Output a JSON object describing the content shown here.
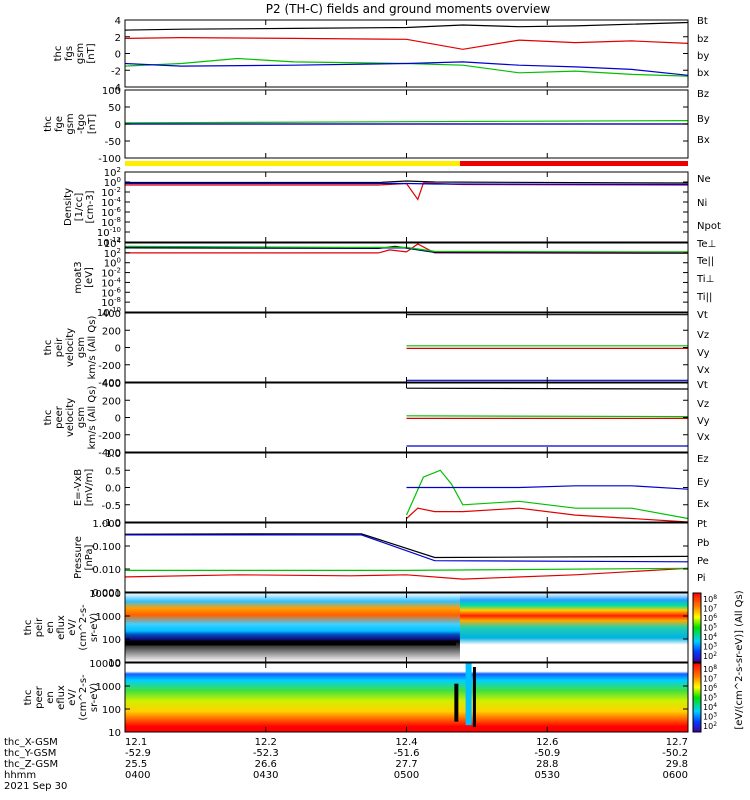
{
  "title": "P2 (TH-C) fields and ground moments overview",
  "colors": {
    "black": "#000000",
    "red": "#e00000",
    "green": "#00c000",
    "blue": "#0000d0"
  },
  "footer": {
    "row_labels": [
      "thc_X-GSM",
      "thc_Y-GSM",
      "thc_Z-GSM",
      "hhmm",
      "2021 Sep 30"
    ],
    "columns": [
      {
        "time": "0400",
        "x_re": "12.1",
        "x": "-52.9",
        "y": "25.5"
      },
      {
        "time": "0430",
        "x_re": "12.2",
        "x": "-52.3",
        "y": "26.6"
      },
      {
        "time": "0500",
        "x_re": "12.4",
        "x": "-51.6",
        "y": "27.7"
      },
      {
        "time": "0530",
        "x_re": "12.6",
        "x": "-50.9",
        "y": "28.8"
      },
      {
        "time": "0600",
        "x_re": "12.7",
        "x": "-50.2",
        "y": "29.8"
      }
    ]
  },
  "colorbar": {
    "label": "[eV/(cm^2-s-sr-eV)] (All Qs)",
    "top_ticks": [
      "10^8",
      "10^7",
      "10^6",
      "10^5",
      "10^4",
      "10^3",
      "10^2"
    ],
    "bottom_ticks": [
      "10^8",
      "10^7",
      "10^6",
      "10^5",
      "10^4",
      "10^3",
      "10^2"
    ]
  },
  "chart_data": [
    {
      "type": "line",
      "ylabel": "thc fgs gsm [nT]",
      "ylim": [
        -4,
        4
      ],
      "yticks": [
        "4",
        "2",
        "0",
        "-2",
        "-4"
      ],
      "series": [
        {
          "name": "Bt",
          "color": "#000000",
          "x": [
            0,
            0.1,
            0.3,
            0.5,
            0.6,
            0.7,
            0.8,
            0.9,
            1.0
          ],
          "values": [
            2.8,
            2.9,
            3.0,
            3.1,
            3.4,
            3.2,
            3.3,
            3.5,
            3.7
          ]
        },
        {
          "name": "bz",
          "color": "#e00000",
          "x": [
            0,
            0.1,
            0.3,
            0.5,
            0.6,
            0.7,
            0.8,
            0.9,
            1.0
          ],
          "values": [
            1.8,
            1.9,
            1.8,
            1.7,
            0.5,
            1.6,
            1.3,
            1.5,
            1.2
          ]
        },
        {
          "name": "by",
          "color": "#00c000",
          "x": [
            0,
            0.1,
            0.2,
            0.3,
            0.5,
            0.6,
            0.7,
            0.8,
            0.9,
            1.0
          ],
          "values": [
            -1.5,
            -1.2,
            -0.6,
            -1.0,
            -1.2,
            -1.4,
            -2.3,
            -2.1,
            -2.5,
            -2.7
          ]
        },
        {
          "name": "bx",
          "color": "#0000d0",
          "x": [
            0,
            0.1,
            0.3,
            0.5,
            0.6,
            0.7,
            0.8,
            0.9,
            1.0
          ],
          "values": [
            -1.2,
            -1.5,
            -1.4,
            -1.2,
            -1.0,
            -1.4,
            -1.6,
            -1.9,
            -2.6
          ]
        }
      ]
    },
    {
      "type": "line",
      "ylabel": "thc fge gsm -tgo [nT]",
      "ylim": [
        -120,
        120
      ],
      "yticks": [
        "100",
        "50",
        "0",
        "-50",
        "-100"
      ],
      "series": [
        {
          "name": "Bz",
          "color": "#e00000",
          "x": [
            0,
            1
          ],
          "values": [
            0,
            0
          ]
        },
        {
          "name": "By",
          "color": "#00c000",
          "x": [
            0,
            0.5,
            1
          ],
          "values": [
            4,
            8,
            12
          ]
        },
        {
          "name": "Bx",
          "color": "#0000d0",
          "x": [
            0,
            1
          ],
          "values": [
            0,
            0
          ]
        }
      ]
    },
    {
      "type": "line",
      "ylabel": "Density [1/cc] [cm^-3]",
      "ylog": true,
      "ylim": [
        -12,
        2
      ],
      "yticks": [
        "10^2",
        "10^0",
        "10^-2",
        "10^-4",
        "10^-6",
        "10^-8",
        "10^-10",
        "10^-12"
      ],
      "series": [
        {
          "name": "Ne",
          "color": "#e00000",
          "x": [
            0,
            0.45,
            0.5,
            0.52,
            0.53,
            0.55,
            0.6,
            1.0
          ],
          "values": [
            -0.6,
            -0.6,
            -0.3,
            -3.5,
            -0.2,
            -0.3,
            -0.5,
            -0.6
          ]
        },
        {
          "name": "Ni",
          "color": "#000000",
          "x": [
            0,
            0.45,
            0.5,
            0.55,
            1.0
          ],
          "values": [
            -0.1,
            -0.1,
            0.2,
            0.0,
            -0.2
          ]
        },
        {
          "name": "Npot",
          "color": "#0000d0",
          "x": [
            0,
            0.5,
            0.55,
            1.0
          ],
          "values": [
            -0.3,
            -0.3,
            -0.4,
            -0.5
          ]
        }
      ]
    },
    {
      "type": "line",
      "ylabel": "moat3 [eV]",
      "ylog": true,
      "ylim": [
        -10,
        4
      ],
      "yticks": [
        "10^4",
        "10^2",
        "10^0",
        "10^-2",
        "10^-4",
        "10^-6",
        "10^-8",
        "10^-10"
      ],
      "series": [
        {
          "name": "Te⊥",
          "color": "#e00000",
          "x": [
            0,
            0.45,
            0.47,
            0.5,
            0.52,
            0.55,
            1.0
          ],
          "values": [
            2.0,
            2.0,
            2.6,
            2.2,
            3.8,
            2.0,
            1.9
          ]
        },
        {
          "name": "Te||",
          "color": "#000000",
          "x": [
            0,
            0.45,
            0.48,
            0.52,
            0.55,
            1.0
          ],
          "values": [
            3.0,
            2.9,
            3.3,
            2.6,
            2.1,
            2.0
          ]
        },
        {
          "name": "Ti⊥",
          "color": "#0000d0",
          "x": [
            0,
            0.4,
            0.5,
            0.55,
            1.0
          ],
          "values": [
            3.2,
            3.0,
            3.0,
            2.2,
            2.1
          ]
        },
        {
          "name": "Ti||",
          "color": "#00c000",
          "x": [
            0,
            0.4,
            0.5,
            0.55,
            1.0
          ],
          "values": [
            3.3,
            3.1,
            3.1,
            2.3,
            2.2
          ]
        }
      ]
    },
    {
      "type": "line",
      "ylabel": "thc peir velocity gsm km/s (All Qs)",
      "ylim": [
        -400,
        400
      ],
      "yticks": [
        "400",
        "200",
        "0",
        "-200",
        "-400"
      ],
      "series": [
        {
          "name": "Vt",
          "color": "#000000",
          "x": [
            0.5,
            1.0
          ],
          "values": [
            380,
            380
          ]
        },
        {
          "name": "Vz",
          "color": "#e00000",
          "x": [
            0.5,
            1.0
          ],
          "values": [
            -10,
            -10
          ]
        },
        {
          "name": "Vy",
          "color": "#00c000",
          "x": [
            0.5,
            1.0
          ],
          "values": [
            20,
            20
          ]
        },
        {
          "name": "Vx",
          "color": "#0000d0",
          "x": [
            0.5,
            1.0
          ],
          "values": [
            -380,
            -380
          ]
        }
      ]
    },
    {
      "type": "line",
      "ylabel": "thc peer velocity gsm km/s (All Qs)",
      "ylim": [
        -400,
        400
      ],
      "yticks": [
        "400",
        "200",
        "0",
        "-200",
        "-400"
      ],
      "series": [
        {
          "name": "Vt",
          "color": "#000000",
          "x": [
            0.5,
            1.0
          ],
          "values": [
            340,
            330
          ]
        },
        {
          "name": "Vz",
          "color": "#e00000",
          "x": [
            0.5,
            1.0
          ],
          "values": [
            -10,
            -10
          ]
        },
        {
          "name": "Vy",
          "color": "#00c000",
          "x": [
            0.5,
            1.0
          ],
          "values": [
            20,
            10
          ]
        },
        {
          "name": "Vx",
          "color": "#0000d0",
          "x": [
            0.5,
            1.0
          ],
          "values": [
            -330,
            -330
          ]
        }
      ]
    },
    {
      "type": "line",
      "ylabel": "E=-VxB [mV/m]",
      "ylim": [
        -1.0,
        1.0
      ],
      "yticks": [
        "1.0",
        "0.5",
        "0.0",
        "-0.5",
        "-1.0"
      ],
      "series": [
        {
          "name": "Ez",
          "color": "#e00000",
          "x": [
            0.5,
            0.52,
            0.55,
            0.6,
            0.7,
            0.8,
            0.9,
            1.0
          ],
          "values": [
            -0.9,
            -0.6,
            -0.7,
            -0.7,
            -0.6,
            -0.8,
            -0.9,
            -1.0
          ]
        },
        {
          "name": "Ey",
          "color": "#00c000",
          "x": [
            0.5,
            0.53,
            0.56,
            0.58,
            0.6,
            0.7,
            0.8,
            0.9,
            1.0
          ],
          "values": [
            -0.8,
            0.3,
            0.5,
            0.1,
            -0.5,
            -0.4,
            -0.6,
            -0.6,
            -0.9
          ]
        },
        {
          "name": "Ex",
          "color": "#0000d0",
          "x": [
            0.5,
            0.6,
            0.7,
            0.8,
            0.9,
            1.0
          ],
          "values": [
            0.0,
            0.0,
            0.0,
            0.05,
            0.05,
            -0.05
          ]
        }
      ]
    },
    {
      "type": "line",
      "ylabel": "Pressure [nPa]",
      "ylog": true,
      "ylim": [
        -3.2,
        0
      ],
      "yticks": [
        "1.000",
        "0.100",
        "0.010",
        "0.001"
      ],
      "series": [
        {
          "name": "Pt",
          "color": "#000000",
          "x": [
            0,
            0.3,
            0.42,
            0.55,
            1.0
          ],
          "values": [
            -0.52,
            -0.5,
            -0.5,
            -1.6,
            -1.55
          ]
        },
        {
          "name": "Pb",
          "color": "#e00000",
          "x": [
            0,
            0.2,
            0.4,
            0.5,
            0.6,
            0.8,
            1.0
          ],
          "values": [
            -2.5,
            -2.4,
            -2.45,
            -2.4,
            -2.6,
            -2.4,
            -2.1
          ]
        },
        {
          "name": "Pe",
          "color": "#00c000",
          "x": [
            0,
            0.5,
            1.0
          ],
          "values": [
            -2.2,
            -2.2,
            -2.1
          ]
        },
        {
          "name": "Pi",
          "color": "#0000d0",
          "x": [
            0,
            0.3,
            0.42,
            0.55,
            1.0
          ],
          "values": [
            -0.55,
            -0.55,
            -0.55,
            -1.75,
            -1.8
          ]
        }
      ]
    },
    {
      "type": "heatmap",
      "ylabel": "thc peir en eflux eV/(cm^2-s-sr-eV)",
      "ylog": true,
      "yticks": [
        "10000",
        "1000",
        "100",
        "10"
      ]
    },
    {
      "type": "heatmap",
      "ylabel": "thc peer en eflux eV/(cm^2-s-sr-eV)",
      "ylog": true,
      "yticks": [
        "10000",
        "1000",
        "100",
        "10"
      ]
    }
  ]
}
